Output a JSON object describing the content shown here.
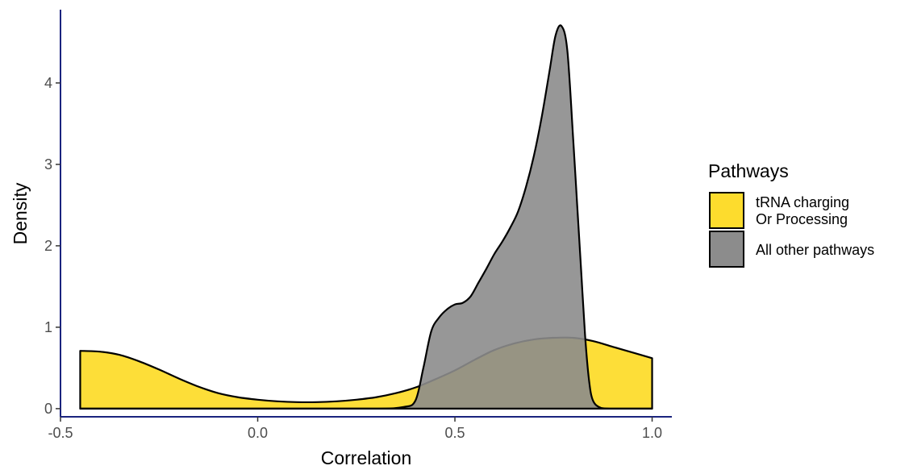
{
  "chart_data": {
    "type": "area",
    "xlabel": "Correlation",
    "ylabel": "Density",
    "xlim": [
      -0.5,
      1.05
    ],
    "ylim": [
      -0.1,
      4.9
    ],
    "x_ticks": [
      -0.5,
      0.0,
      0.5,
      1.0
    ],
    "x_tick_labels": [
      "-0.5",
      "0.0",
      "0.5",
      "1.0"
    ],
    "y_ticks": [
      0,
      1,
      2,
      3,
      4
    ],
    "y_tick_labels": [
      "0",
      "1",
      "2",
      "3",
      "4"
    ],
    "grid": false,
    "legend": {
      "title": "Pathways",
      "placement": "right",
      "entries": [
        {
          "lines": [
            "tRNA charging",
            "Or Processing"
          ],
          "color": "#FDDC2D"
        },
        {
          "lines": [
            "All other pathways"
          ],
          "color": "#8C8C8C"
        }
      ]
    },
    "series": [
      {
        "color": "#FDDC2D",
        "opacity": 0.95,
        "x": [
          -0.45,
          -0.4,
          -0.35,
          -0.3,
          -0.25,
          -0.2,
          -0.15,
          -0.1,
          -0.05,
          0.0,
          0.05,
          0.1,
          0.15,
          0.2,
          0.25,
          0.3,
          0.35,
          0.4,
          0.45,
          0.5,
          0.55,
          0.6,
          0.65,
          0.7,
          0.75,
          0.8,
          0.85,
          0.9,
          0.95,
          1.0
        ],
        "y": [
          0.71,
          0.7,
          0.66,
          0.58,
          0.48,
          0.37,
          0.27,
          0.19,
          0.14,
          0.11,
          0.09,
          0.08,
          0.08,
          0.09,
          0.11,
          0.14,
          0.19,
          0.26,
          0.36,
          0.47,
          0.6,
          0.72,
          0.8,
          0.85,
          0.87,
          0.87,
          0.83,
          0.76,
          0.69,
          0.62
        ]
      },
      {
        "color": "#8C8C8C",
        "opacity": 0.9,
        "x": [
          -0.45,
          -0.3,
          -0.1,
          0.1,
          0.3,
          0.37,
          0.4,
          0.42,
          0.44,
          0.46,
          0.48,
          0.5,
          0.52,
          0.54,
          0.56,
          0.58,
          0.6,
          0.62,
          0.64,
          0.66,
          0.68,
          0.7,
          0.72,
          0.74,
          0.755,
          0.77,
          0.785,
          0.8,
          0.81,
          0.82,
          0.83,
          0.84,
          0.85,
          0.87,
          0.9,
          0.95,
          1.0
        ],
        "y": [
          0.0,
          0.0,
          0.0,
          0.0,
          0.0,
          0.02,
          0.1,
          0.5,
          0.95,
          1.12,
          1.22,
          1.28,
          1.3,
          1.38,
          1.55,
          1.72,
          1.9,
          2.05,
          2.22,
          2.42,
          2.72,
          3.1,
          3.58,
          4.15,
          4.58,
          4.7,
          4.4,
          3.3,
          2.5,
          1.7,
          0.9,
          0.35,
          0.1,
          0.01,
          0.0,
          0.0,
          0.0
        ]
      }
    ]
  }
}
